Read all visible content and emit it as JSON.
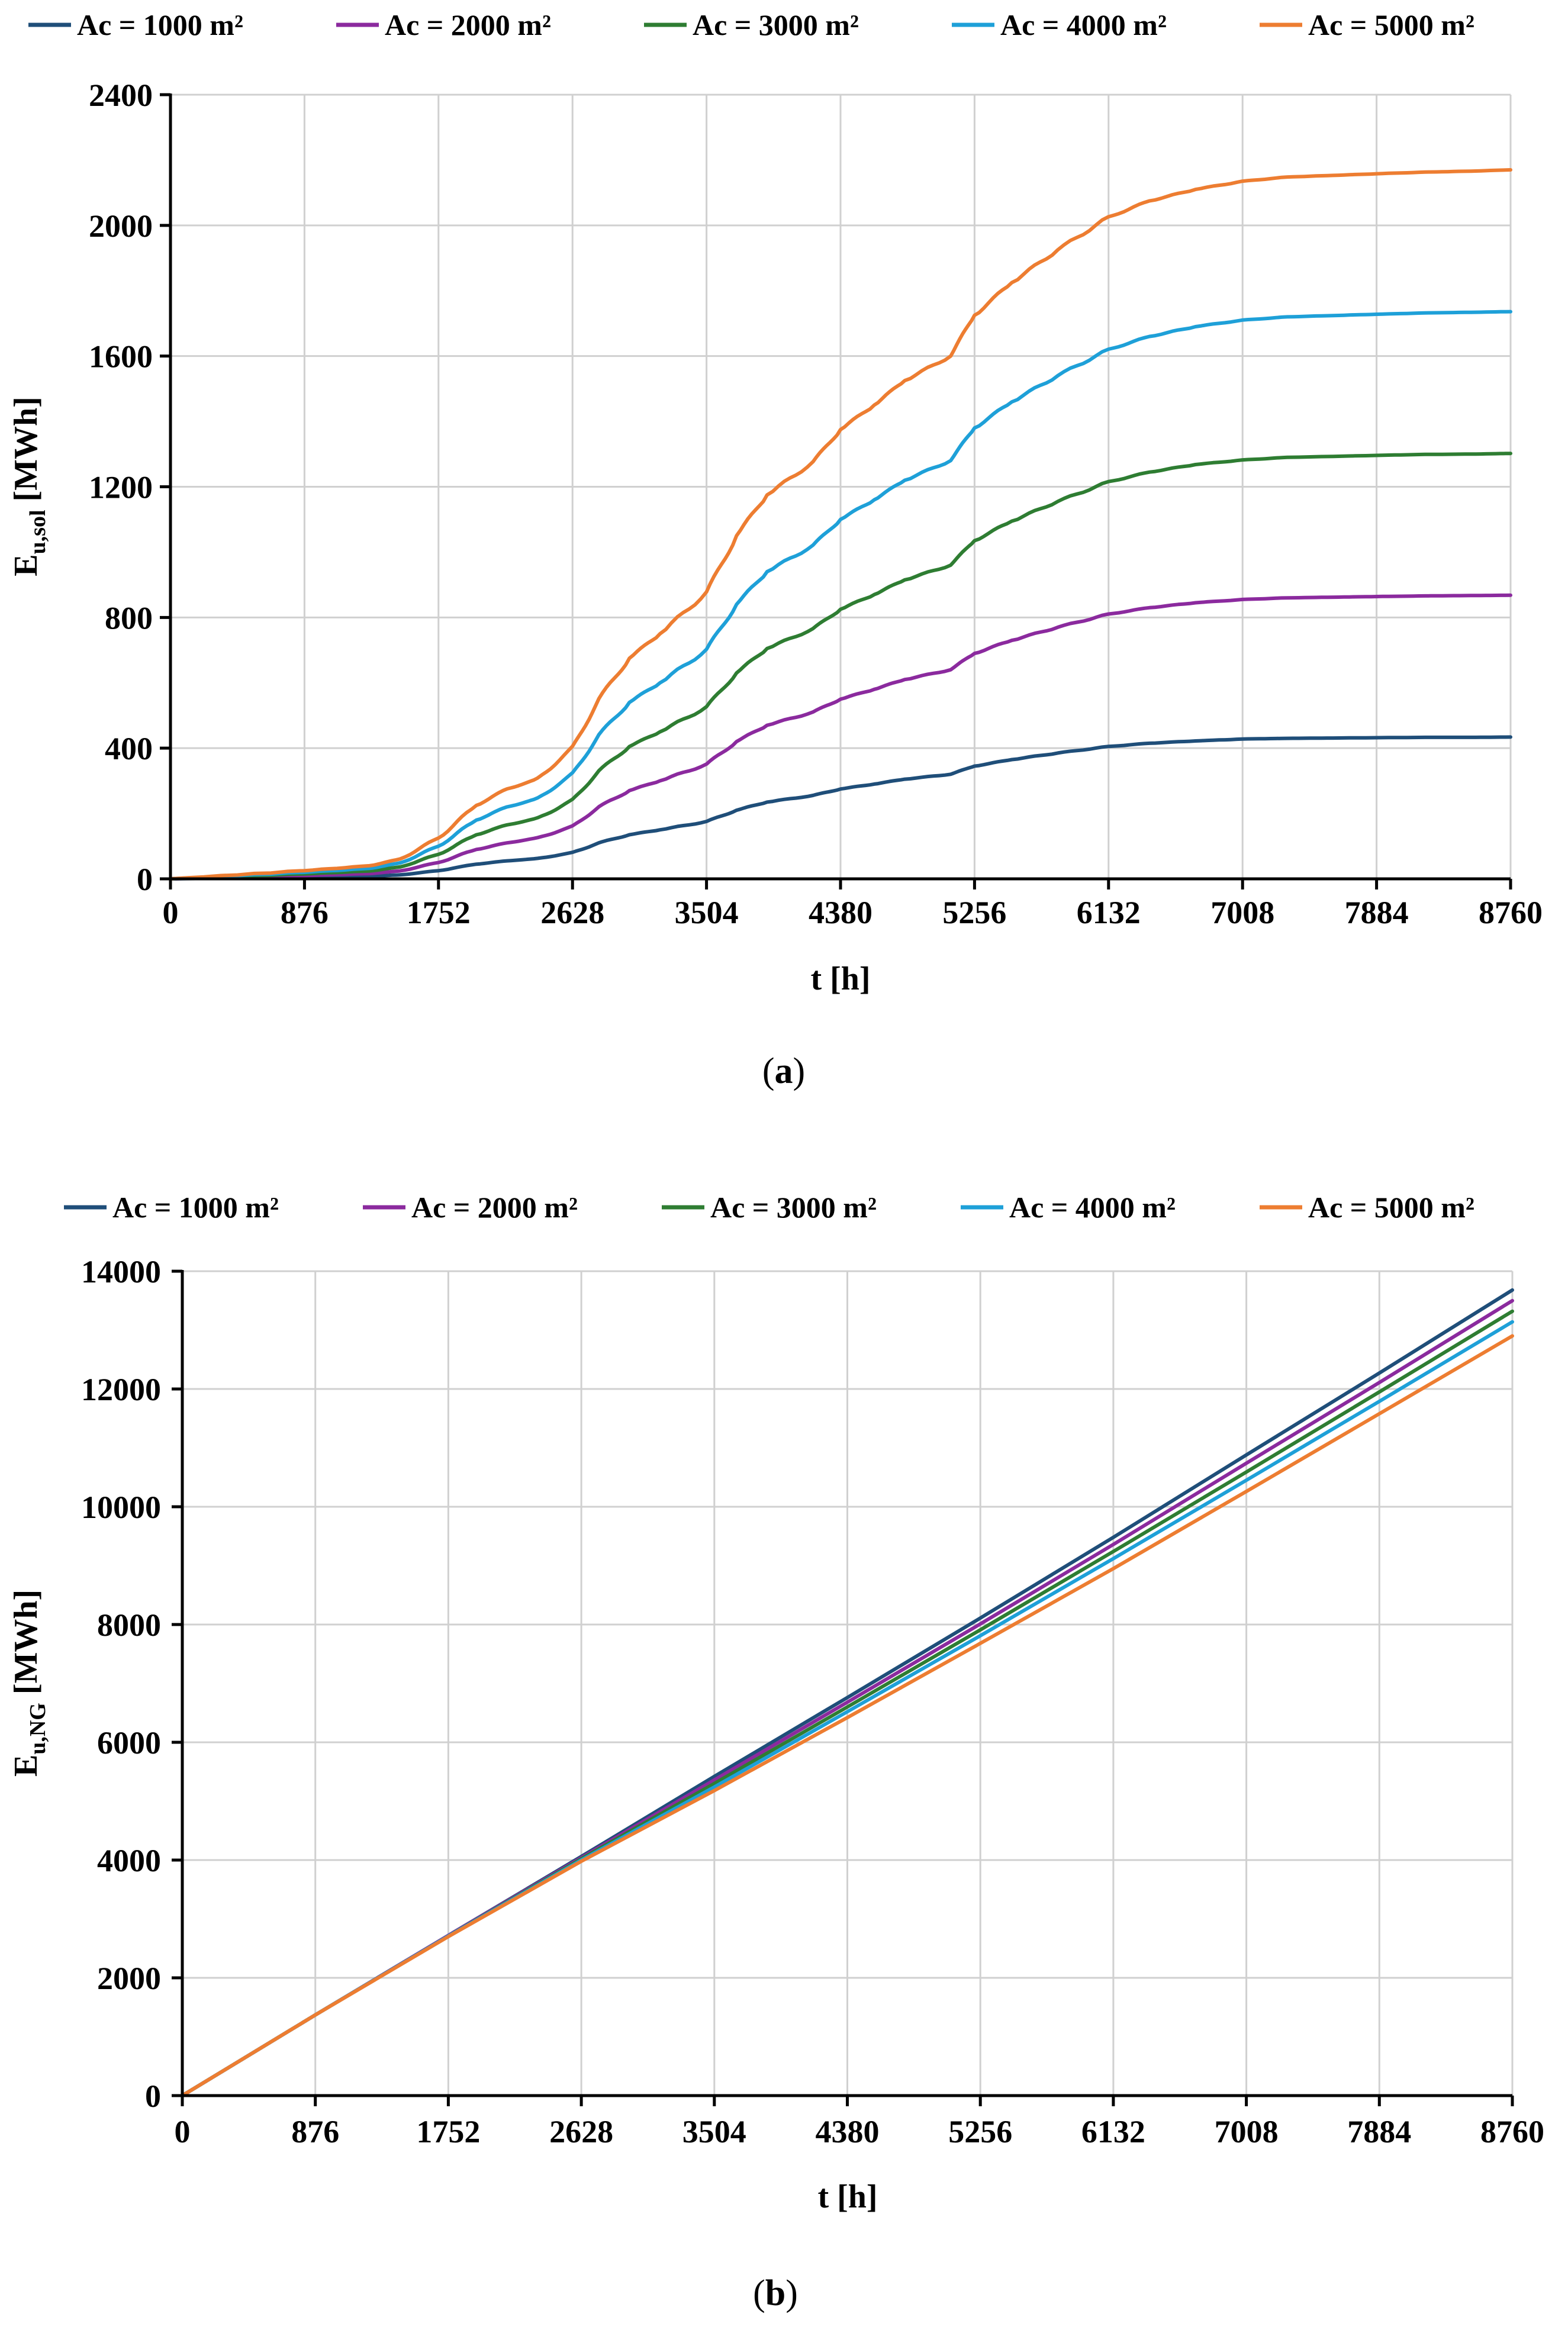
{
  "chart_data": [
    {
      "id": "a",
      "type": "line",
      "caption": "(a)",
      "caption_letter": "a",
      "xlabel": "t [h]",
      "ylabel": "E",
      "ylabel_sub": "u,sol",
      "ylabel_unit": " [MWh]",
      "xlim": [
        0,
        8760
      ],
      "ylim": [
        0,
        2400
      ],
      "xticks": [
        0,
        876,
        1752,
        2628,
        3504,
        4380,
        5256,
        6132,
        7008,
        7884,
        8760
      ],
      "yticks": [
        0,
        400,
        800,
        1200,
        1600,
        2000,
        2400
      ],
      "grid": true,
      "legend_position": "top",
      "series": [
        {
          "name": "Ac = 1000 m²",
          "color": "#1f4e79",
          "x": [
            0,
            876,
            1300,
            1500,
            1752,
            2000,
            2200,
            2400,
            2628,
            2800,
            3000,
            3200,
            3504,
            3700,
            3900,
            4200,
            4380,
            4600,
            4800,
            5100,
            5256,
            5500,
            5800,
            6132,
            6400,
            6700,
            7008,
            7300,
            7600,
            7884,
            8200,
            8500,
            8760
          ],
          "y": [
            0,
            5,
            8,
            12,
            25,
            45,
            55,
            62,
            80,
            110,
            135,
            150,
            175,
            210,
            235,
            255,
            275,
            290,
            305,
            320,
            345,
            365,
            385,
            405,
            415,
            422,
            428,
            430,
            431,
            432,
            433,
            433,
            434
          ]
        },
        {
          "name": "Ac = 2000 m²",
          "color": "#8b2a9e",
          "x": [
            0,
            876,
            1300,
            1500,
            1752,
            2000,
            2200,
            2400,
            2628,
            2800,
            3000,
            3200,
            3504,
            3700,
            3900,
            4200,
            4380,
            4600,
            4800,
            5100,
            5256,
            5500,
            5800,
            6132,
            6400,
            6700,
            7008,
            7300,
            7600,
            7884,
            8200,
            8500,
            8760
          ],
          "y": [
            0,
            10,
            16,
            24,
            50,
            90,
            110,
            125,
            160,
            220,
            270,
            300,
            350,
            420,
            470,
            510,
            550,
            580,
            610,
            640,
            690,
            730,
            770,
            810,
            830,
            845,
            855,
            860,
            862,
            864,
            866,
            867,
            868
          ]
        },
        {
          "name": "Ac = 3000 m²",
          "color": "#2e7d32",
          "x": [
            0,
            876,
            1300,
            1500,
            1752,
            2000,
            2200,
            2400,
            2628,
            2800,
            3000,
            3200,
            3504,
            3700,
            3900,
            4200,
            4380,
            4600,
            4800,
            5100,
            5256,
            5500,
            5800,
            6132,
            6400,
            6700,
            7008,
            7300,
            7600,
            7884,
            8200,
            8500,
            8760
          ],
          "y": [
            0,
            15,
            24,
            36,
            75,
            135,
            165,
            185,
            240,
            330,
            405,
            450,
            525,
            630,
            705,
            765,
            825,
            870,
            915,
            960,
            1035,
            1095,
            1155,
            1215,
            1245,
            1268,
            1282,
            1290,
            1293,
            1296,
            1299,
            1300,
            1302
          ]
        },
        {
          "name": "Ac = 4000 m²",
          "color": "#1ea0d8",
          "x": [
            0,
            876,
            1300,
            1500,
            1752,
            2000,
            2200,
            2400,
            2628,
            2800,
            3000,
            3200,
            3504,
            3700,
            3900,
            4200,
            4380,
            4600,
            4800,
            5100,
            5256,
            5500,
            5800,
            6132,
            6400,
            6700,
            7008,
            7300,
            7600,
            7884,
            8200,
            8500,
            8760
          ],
          "y": [
            0,
            20,
            32,
            48,
            100,
            180,
            220,
            245,
            320,
            440,
            540,
            600,
            700,
            840,
            940,
            1020,
            1100,
            1160,
            1220,
            1280,
            1380,
            1460,
            1540,
            1620,
            1660,
            1690,
            1710,
            1720,
            1724,
            1728,
            1732,
            1734,
            1736
          ]
        },
        {
          "name": "Ac = 5000 m²",
          "color": "#ed7d31",
          "x": [
            0,
            876,
            1300,
            1500,
            1752,
            2000,
            2200,
            2400,
            2628,
            2800,
            3000,
            3200,
            3504,
            3700,
            3900,
            4200,
            4380,
            4600,
            4800,
            5100,
            5256,
            5500,
            5800,
            6132,
            6400,
            6700,
            7008,
            7300,
            7600,
            7884,
            8200,
            8500,
            8760
          ],
          "y": [
            0,
            25,
            40,
            60,
            125,
            225,
            275,
            305,
            400,
            550,
            675,
            750,
            875,
            1050,
            1175,
            1275,
            1375,
            1450,
            1525,
            1600,
            1725,
            1825,
            1925,
            2025,
            2075,
            2110,
            2135,
            2148,
            2153,
            2158,
            2163,
            2166,
            2170
          ]
        }
      ]
    },
    {
      "id": "b",
      "type": "line",
      "caption": "(b)",
      "caption_letter": "b",
      "xlabel": "t [h]",
      "ylabel": "E",
      "ylabel_sub": "u,NG",
      "ylabel_unit": " [MWh]",
      "xlim": [
        0,
        8760
      ],
      "ylim": [
        0,
        14000
      ],
      "xticks": [
        0,
        876,
        1752,
        2628,
        3504,
        4380,
        5256,
        6132,
        7008,
        7884,
        8760
      ],
      "yticks": [
        0,
        2000,
        4000,
        6000,
        8000,
        10000,
        12000,
        14000
      ],
      "grid": true,
      "legend_position": "top",
      "series": [
        {
          "name": "Ac = 1000 m²",
          "color": "#1f4e79",
          "x": [
            0,
            876,
            1752,
            2628,
            3504,
            4380,
            5256,
            6132,
            7008,
            7884,
            8760
          ],
          "y": [
            0,
            1370,
            2720,
            4060,
            5420,
            6760,
            8110,
            9480,
            10880,
            12270,
            13680
          ]
        },
        {
          "name": "Ac = 2000 m²",
          "color": "#8b2a9e",
          "x": [
            0,
            876,
            1752,
            2628,
            3504,
            4380,
            5256,
            6132,
            7008,
            7884,
            8760
          ],
          "y": [
            0,
            1370,
            2720,
            4040,
            5360,
            6680,
            8010,
            9360,
            10740,
            12110,
            13500
          ]
        },
        {
          "name": "Ac = 3000 m²",
          "color": "#2e7d32",
          "x": [
            0,
            876,
            1752,
            2628,
            3504,
            4380,
            5256,
            6132,
            7008,
            7884,
            8760
          ],
          "y": [
            0,
            1370,
            2710,
            4020,
            5300,
            6600,
            7910,
            9240,
            10590,
            11950,
            13320
          ]
        },
        {
          "name": "Ac = 4000 m²",
          "color": "#1ea0d8",
          "x": [
            0,
            876,
            1752,
            2628,
            3504,
            4380,
            5256,
            6132,
            7008,
            7884,
            8760
          ],
          "y": [
            0,
            1370,
            2710,
            4000,
            5240,
            6520,
            7810,
            9120,
            10450,
            11790,
            13140
          ]
        },
        {
          "name": "Ac = 5000 m²",
          "color": "#ed7d31",
          "x": [
            0,
            876,
            1752,
            2628,
            3504,
            4380,
            5256,
            6132,
            7008,
            7884,
            8760
          ],
          "y": [
            0,
            1370,
            2700,
            3980,
            5180,
            6420,
            7680,
            8950,
            10260,
            11580,
            12900
          ]
        }
      ]
    }
  ]
}
